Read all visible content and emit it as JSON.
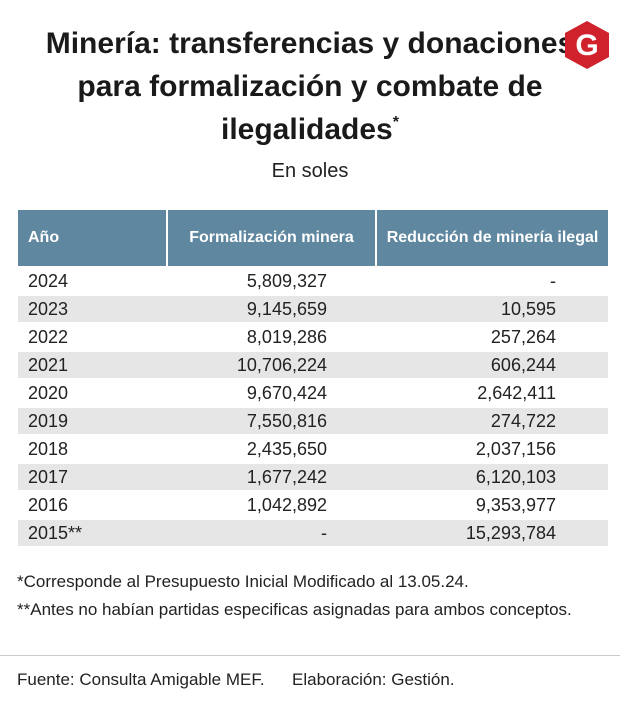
{
  "header": {
    "title": "Minería: transferencias y donaciones para formalización y combate de ilegalidades",
    "title_mark": "*",
    "subtitle": "En soles",
    "logo": "G"
  },
  "table": {
    "columns": [
      "Año",
      "Formalización minera",
      "Reducción de minería ilegal"
    ],
    "rows": [
      [
        "2024",
        "5,809,327",
        "-"
      ],
      [
        "2023",
        "9,145,659",
        "10,595"
      ],
      [
        "2022",
        "8,019,286",
        "257,264"
      ],
      [
        "2021",
        "10,706,224",
        "606,244"
      ],
      [
        "2020",
        "9,670,424",
        "2,642,411"
      ],
      [
        "2019",
        "7,550,816",
        "274,722"
      ],
      [
        "2018",
        "2,435,650",
        "2,037,156"
      ],
      [
        "2017",
        "1,677,242",
        "6,120,103"
      ],
      [
        "2016",
        "1,042,892",
        "9,353,977"
      ],
      [
        "2015**",
        "-",
        "15,293,784"
      ]
    ]
  },
  "notes": [
    "*Corresponde al Presupuesto Inicial Modificado al 13.05.24.",
    "**Antes no habían partidas especificas asignadas para ambos conceptos."
  ],
  "footer": {
    "source": "Fuente: Consulta Amigable MEF.",
    "credit": "Elaboración: Gestión."
  }
}
